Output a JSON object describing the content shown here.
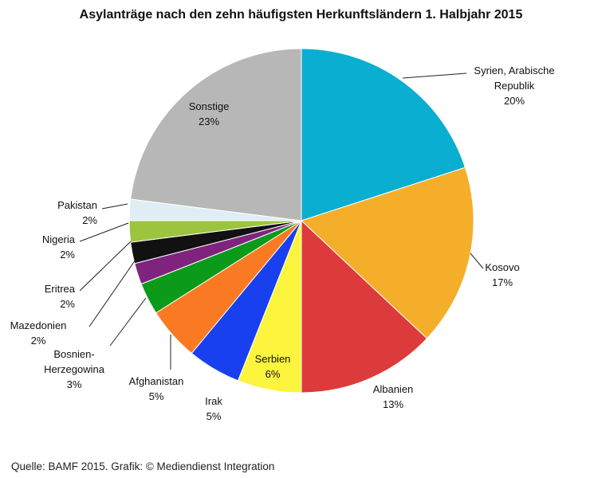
{
  "chart_data": {
    "type": "pie",
    "title": "Asylanträge nach den zehn häufigsten Herkunftsländern 1. Halbjahr 2015",
    "source": "Quelle: BAMF 2015. Grafik: © Mediendienst Integration",
    "slices": [
      {
        "name": [
          "Syrien, Arabische",
          "Republik"
        ],
        "value": 20,
        "label": "20%",
        "color": "#0aaed0"
      },
      {
        "name": [
          "Kosovo"
        ],
        "value": 17,
        "label": "17%",
        "color": "#f5ae2a"
      },
      {
        "name": [
          "Albanien"
        ],
        "value": 13,
        "label": "13%",
        "color": "#dd3a3c"
      },
      {
        "name": [
          "Serbien"
        ],
        "value": 6,
        "label": "6%",
        "color": "#fcf43d"
      },
      {
        "name": [
          "Irak"
        ],
        "value": 5,
        "label": "5%",
        "color": "#1940ee"
      },
      {
        "name": [
          "Afghanistan"
        ],
        "value": 5,
        "label": "5%",
        "color": "#fa7a23"
      },
      {
        "name": [
          "Bosnien-",
          "Herzegowina"
        ],
        "value": 3,
        "label": "3%",
        "color": "#0b9a19"
      },
      {
        "name": [
          "Mazedonien"
        ],
        "value": 2,
        "label": "2%",
        "color": "#80237f"
      },
      {
        "name": [
          "Eritrea"
        ],
        "value": 2,
        "label": "2%",
        "color": "#111111"
      },
      {
        "name": [
          "Nigeria"
        ],
        "value": 2,
        "label": "2%",
        "color": "#9cc43f"
      },
      {
        "name": [
          "Pakistan"
        ],
        "value": 2,
        "label": "2%",
        "color": "#dfeef4"
      },
      {
        "name": [
          "Sonstige"
        ],
        "value": 23,
        "label": "23%",
        "color": "#b7b7b7"
      }
    ]
  }
}
